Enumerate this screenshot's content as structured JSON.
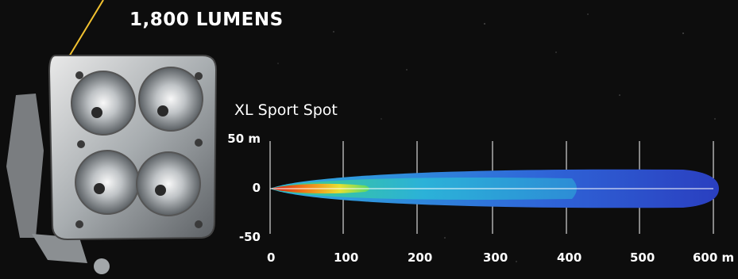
{
  "header": {
    "lumens_label": "1,800 LUMENS"
  },
  "chart": {
    "title": "XL Sport Spot",
    "y_ticks": [
      "50 m",
      "0",
      "-50"
    ],
    "x_ticks": [
      "0",
      "100",
      "200",
      "300",
      "400",
      "500",
      "600 m"
    ]
  },
  "chart_data": {
    "type": "area",
    "title": "XL Sport Spot",
    "xlabel": "",
    "ylabel": "",
    "x_unit": "m",
    "y_unit": "m",
    "xlim": [
      0,
      600
    ],
    "ylim": [
      -50,
      50
    ],
    "x_ticks": [
      0,
      100,
      200,
      300,
      400,
      500,
      600
    ],
    "y_ticks": [
      50,
      0,
      -50
    ],
    "grid": true,
    "beam_reach_m": 600,
    "beam_half_width_m": 12,
    "colors": {
      "outer": "#2d48c8",
      "mid": "#2aa3d6",
      "core": "#3ed68a",
      "hot": "#e63a1c"
    }
  }
}
